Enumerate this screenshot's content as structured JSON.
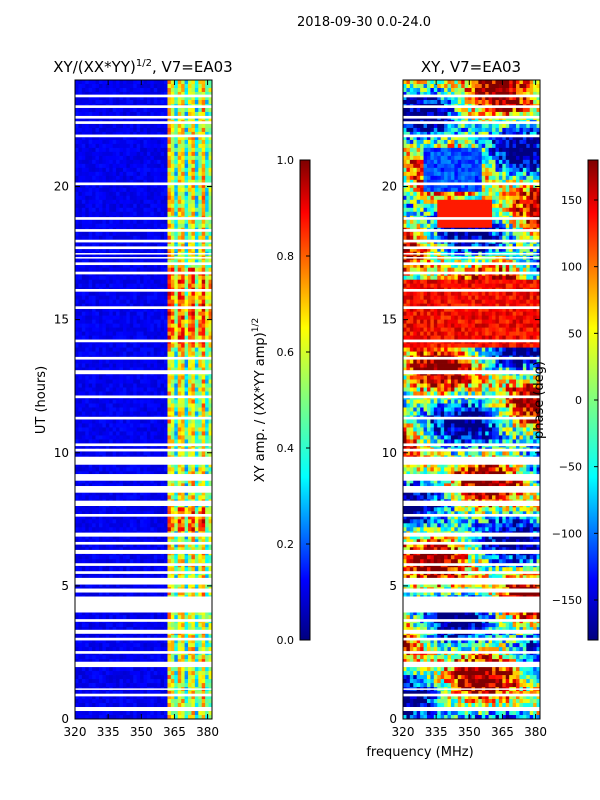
{
  "figure": {
    "suptitle": "2018-09-30 0.0-24.0",
    "xlabel": "frequency (MHz)"
  },
  "chart_data": [
    {
      "type": "heatmap",
      "title_main": "XY/(XX*YY)",
      "title_sup": "1/2",
      "title_rest": ", V7=EA03",
      "ylabel": "UT (hours)",
      "xlim": [
        320,
        382
      ],
      "ylim": [
        0,
        24
      ],
      "xticks": [
        320,
        335,
        350,
        365,
        380
      ],
      "yticks": [
        0,
        5,
        10,
        15,
        20
      ],
      "colorbar": {
        "label_main": "XY amp. / (XX*YY amp)",
        "label_sup": "1/2",
        "range": [
          0.0,
          1.0
        ],
        "ticks": [
          "0.0",
          "0.2",
          "0.4",
          "0.6",
          "0.8",
          "1.0"
        ],
        "tick_values": [
          0.0,
          0.2,
          0.4,
          0.6,
          0.8,
          1.0
        ]
      },
      "data_gaps_hours": [
        [
          0.3,
          0.45
        ],
        [
          0.85,
          0.95
        ],
        [
          1.1,
          1.15
        ],
        [
          1.95,
          2.15
        ],
        [
          2.45,
          2.55
        ],
        [
          2.95,
          3.05
        ],
        [
          3.2,
          3.35
        ],
        [
          3.65,
          3.75
        ],
        [
          4.0,
          4.6
        ],
        [
          4.75,
          4.9
        ],
        [
          5.05,
          5.3
        ],
        [
          5.45,
          5.55
        ],
        [
          5.75,
          5.85
        ],
        [
          6.2,
          6.35
        ],
        [
          6.55,
          6.65
        ],
        [
          6.85,
          7.0
        ],
        [
          7.6,
          7.7
        ],
        [
          8.0,
          8.2
        ],
        [
          8.5,
          8.75
        ],
        [
          8.95,
          9.2
        ],
        [
          9.55,
          9.85
        ],
        [
          10.05,
          10.15
        ],
        [
          10.25,
          10.35
        ],
        [
          11.25,
          11.35
        ],
        [
          12.05,
          12.15
        ],
        [
          12.95,
          13.1
        ],
        [
          13.5,
          13.6
        ],
        [
          14.15,
          14.25
        ],
        [
          15.4,
          15.5
        ],
        [
          16.05,
          16.15
        ],
        [
          16.7,
          16.8
        ],
        [
          17.05,
          17.15
        ],
        [
          17.3,
          17.35
        ],
        [
          17.45,
          17.5
        ],
        [
          17.65,
          17.75
        ],
        [
          17.9,
          18.0
        ],
        [
          18.3,
          18.4
        ],
        [
          18.75,
          18.85
        ],
        [
          20.05,
          20.15
        ],
        [
          21.85,
          21.95
        ],
        [
          22.35,
          22.45
        ],
        [
          22.55,
          22.65
        ],
        [
          22.95,
          23.05
        ],
        [
          23.35,
          23.45
        ]
      ]
    },
    {
      "type": "heatmap",
      "title_main": "XY, V7=EA03",
      "title_sup": "",
      "title_rest": "",
      "ylabel": "",
      "xlim": [
        320,
        382
      ],
      "ylim": [
        0,
        24
      ],
      "xticks": [
        320,
        335,
        350,
        365,
        380
      ],
      "yticks": [
        0,
        5,
        10,
        15,
        20
      ],
      "colorbar": {
        "label_main": "phase (deg)",
        "label_sup": "",
        "range": [
          -180,
          180
        ],
        "ticks": [
          "−150",
          "−100",
          "−50",
          "0",
          "50",
          "100",
          "150"
        ],
        "tick_values": [
          -150,
          -100,
          -50,
          0,
          50,
          100,
          150
        ]
      },
      "data_gaps_hours": [
        [
          0.3,
          0.45
        ],
        [
          0.85,
          0.95
        ],
        [
          1.1,
          1.15
        ],
        [
          1.95,
          2.15
        ],
        [
          2.45,
          2.55
        ],
        [
          2.95,
          3.05
        ],
        [
          3.2,
          3.35
        ],
        [
          3.65,
          3.75
        ],
        [
          4.0,
          4.6
        ],
        [
          4.75,
          4.9
        ],
        [
          5.05,
          5.3
        ],
        [
          5.45,
          5.55
        ],
        [
          5.75,
          5.85
        ],
        [
          6.2,
          6.35
        ],
        [
          6.55,
          6.65
        ],
        [
          6.85,
          7.0
        ],
        [
          7.6,
          7.7
        ],
        [
          8.0,
          8.2
        ],
        [
          8.5,
          8.75
        ],
        [
          8.95,
          9.2
        ],
        [
          9.55,
          9.85
        ],
        [
          10.05,
          10.15
        ],
        [
          10.25,
          10.35
        ],
        [
          11.25,
          11.35
        ],
        [
          12.05,
          12.15
        ],
        [
          12.95,
          13.1
        ],
        [
          13.5,
          13.6
        ],
        [
          14.15,
          14.25
        ],
        [
          15.4,
          15.5
        ],
        [
          16.05,
          16.15
        ],
        [
          16.7,
          16.8
        ],
        [
          17.05,
          17.15
        ],
        [
          17.3,
          17.35
        ],
        [
          17.45,
          17.5
        ],
        [
          17.65,
          17.75
        ],
        [
          17.9,
          18.0
        ],
        [
          18.3,
          18.4
        ],
        [
          18.75,
          18.85
        ],
        [
          20.05,
          20.15
        ],
        [
          21.85,
          21.95
        ],
        [
          22.35,
          22.45
        ],
        [
          22.55,
          22.65
        ],
        [
          22.95,
          23.05
        ],
        [
          23.35,
          23.45
        ]
      ]
    }
  ]
}
